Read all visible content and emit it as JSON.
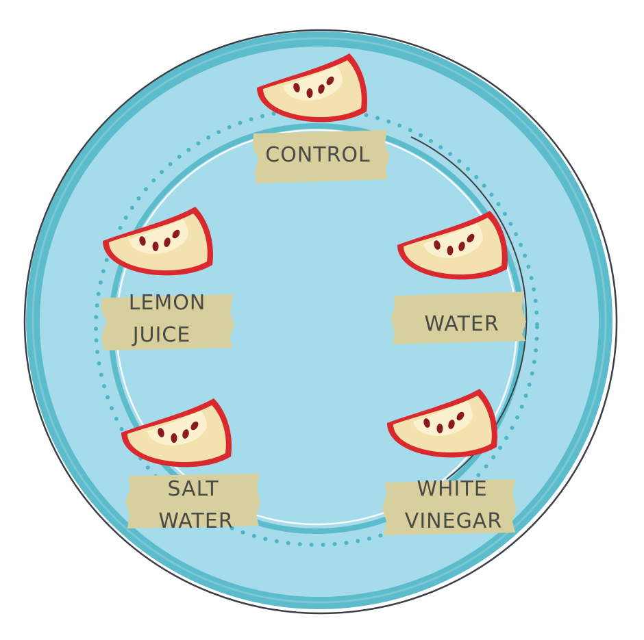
{
  "plate": {
    "rim_color": "#5cbccb",
    "face_color": "#a6dbec",
    "outline_color": "#3a3f47",
    "dot_color": "#4fb4c6"
  },
  "apple": {
    "skin_color": "#d9282e",
    "flesh_color": "#f3e2ad",
    "core_color": "#fbf1cf",
    "seed_color": "#8a1a1f"
  },
  "tape_color": "#d8cf9e",
  "labels": {
    "control": [
      "CONTROL"
    ],
    "lemon_juice": [
      "LEMON",
      "JUICE"
    ],
    "water": [
      "WATER"
    ],
    "salt_water": [
      "SALT",
      "WATER"
    ],
    "white_vinegar": [
      "WHITE",
      "VINEGAR"
    ]
  }
}
